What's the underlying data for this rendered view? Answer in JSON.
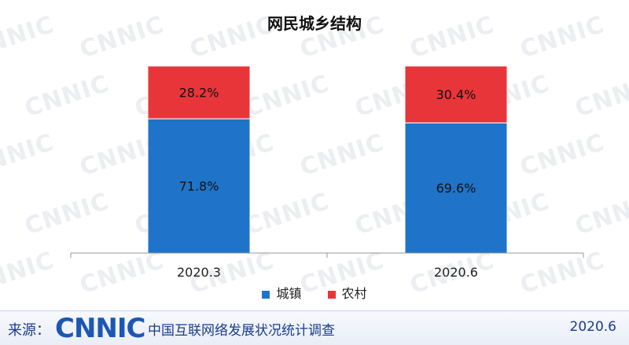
{
  "chart_data": {
    "type": "bar",
    "stacked": true,
    "title": "网民城乡结构",
    "categories": [
      "2020.3",
      "2020.6"
    ],
    "series": [
      {
        "name": "城镇",
        "values": [
          71.8,
          69.6
        ],
        "labels": [
          "71.8%",
          "69.6%"
        ],
        "color": "#1f74c9"
      },
      {
        "name": "农村",
        "values": [
          28.2,
          30.4
        ],
        "labels": [
          "28.2%",
          "30.4%"
        ],
        "color": "#e8353a"
      }
    ],
    "ylim": [
      0,
      100
    ],
    "grid": false,
    "legend": "bottom"
  },
  "watermark": "CNNIC",
  "footer": {
    "source_label": "来源：",
    "logo": "CNNIC",
    "org_name": "中国互联网络发展状况统计调查",
    "date": "2020.6"
  }
}
